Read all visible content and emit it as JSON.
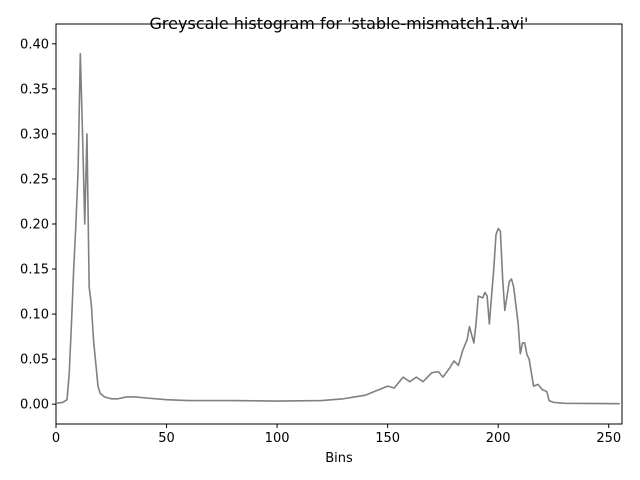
{
  "chart_data": {
    "type": "line",
    "title": "Greyscale histogram for 'stable-mismatch1.avi'",
    "x_label": "Bins",
    "x": [
      0,
      3,
      5,
      6,
      7,
      8,
      9,
      10,
      11,
      12,
      13,
      14,
      15,
      16,
      17,
      18,
      19,
      20,
      22,
      25,
      28,
      32,
      36,
      40,
      50,
      60,
      80,
      100,
      120,
      130,
      135,
      140,
      145,
      150,
      153,
      157,
      160,
      163,
      166,
      170,
      173,
      175,
      178,
      180,
      182,
      184,
      186,
      187,
      189,
      190,
      191,
      193,
      194,
      195,
      196,
      197,
      198,
      199,
      200,
      201,
      202,
      203,
      204,
      205,
      206,
      207,
      208,
      209,
      210,
      211,
      212,
      213,
      214,
      215,
      216,
      218,
      220,
      222,
      223,
      225,
      230,
      240,
      255
    ],
    "values": [
      0.001,
      0.002,
      0.005,
      0.035,
      0.09,
      0.15,
      0.2,
      0.26,
      0.389,
      0.3,
      0.2,
      0.3,
      0.13,
      0.11,
      0.07,
      0.045,
      0.02,
      0.012,
      0.008,
      0.006,
      0.006,
      0.008,
      0.008,
      0.007,
      0.005,
      0.004,
      0.004,
      0.0035,
      0.004,
      0.006,
      0.008,
      0.01,
      0.015,
      0.02,
      0.018,
      0.03,
      0.025,
      0.03,
      0.025,
      0.035,
      0.036,
      0.03,
      0.04,
      0.048,
      0.043,
      0.06,
      0.072,
      0.086,
      0.068,
      0.09,
      0.12,
      0.118,
      0.124,
      0.12,
      0.089,
      0.12,
      0.15,
      0.188,
      0.195,
      0.192,
      0.14,
      0.104,
      0.12,
      0.136,
      0.139,
      0.13,
      0.11,
      0.09,
      0.056,
      0.068,
      0.068,
      0.055,
      0.05,
      0.035,
      0.02,
      0.022,
      0.016,
      0.014,
      0.004,
      0.002,
      0.001,
      0.0008,
      0.0005
    ],
    "color": "#808080",
    "xlim": [
      0,
      256
    ],
    "xticks": [
      0,
      50,
      100,
      150,
      200,
      250
    ],
    "ylim": [
      -0.022,
      0.422
    ],
    "yticks": [
      {
        "value": 0,
        "label": "0.00"
      },
      {
        "value": 0.05,
        "label": "0.05"
      },
      {
        "value": 0.1,
        "label": "0.10"
      },
      {
        "value": 0.15,
        "label": "0.15"
      },
      {
        "value": 0.2,
        "label": "0.20"
      },
      {
        "value": 0.25,
        "label": "0.25"
      },
      {
        "value": 0.3,
        "label": "0.30"
      },
      {
        "value": 0.35,
        "label": "0.35"
      },
      {
        "value": 0.4,
        "label": "0.40"
      }
    ]
  }
}
